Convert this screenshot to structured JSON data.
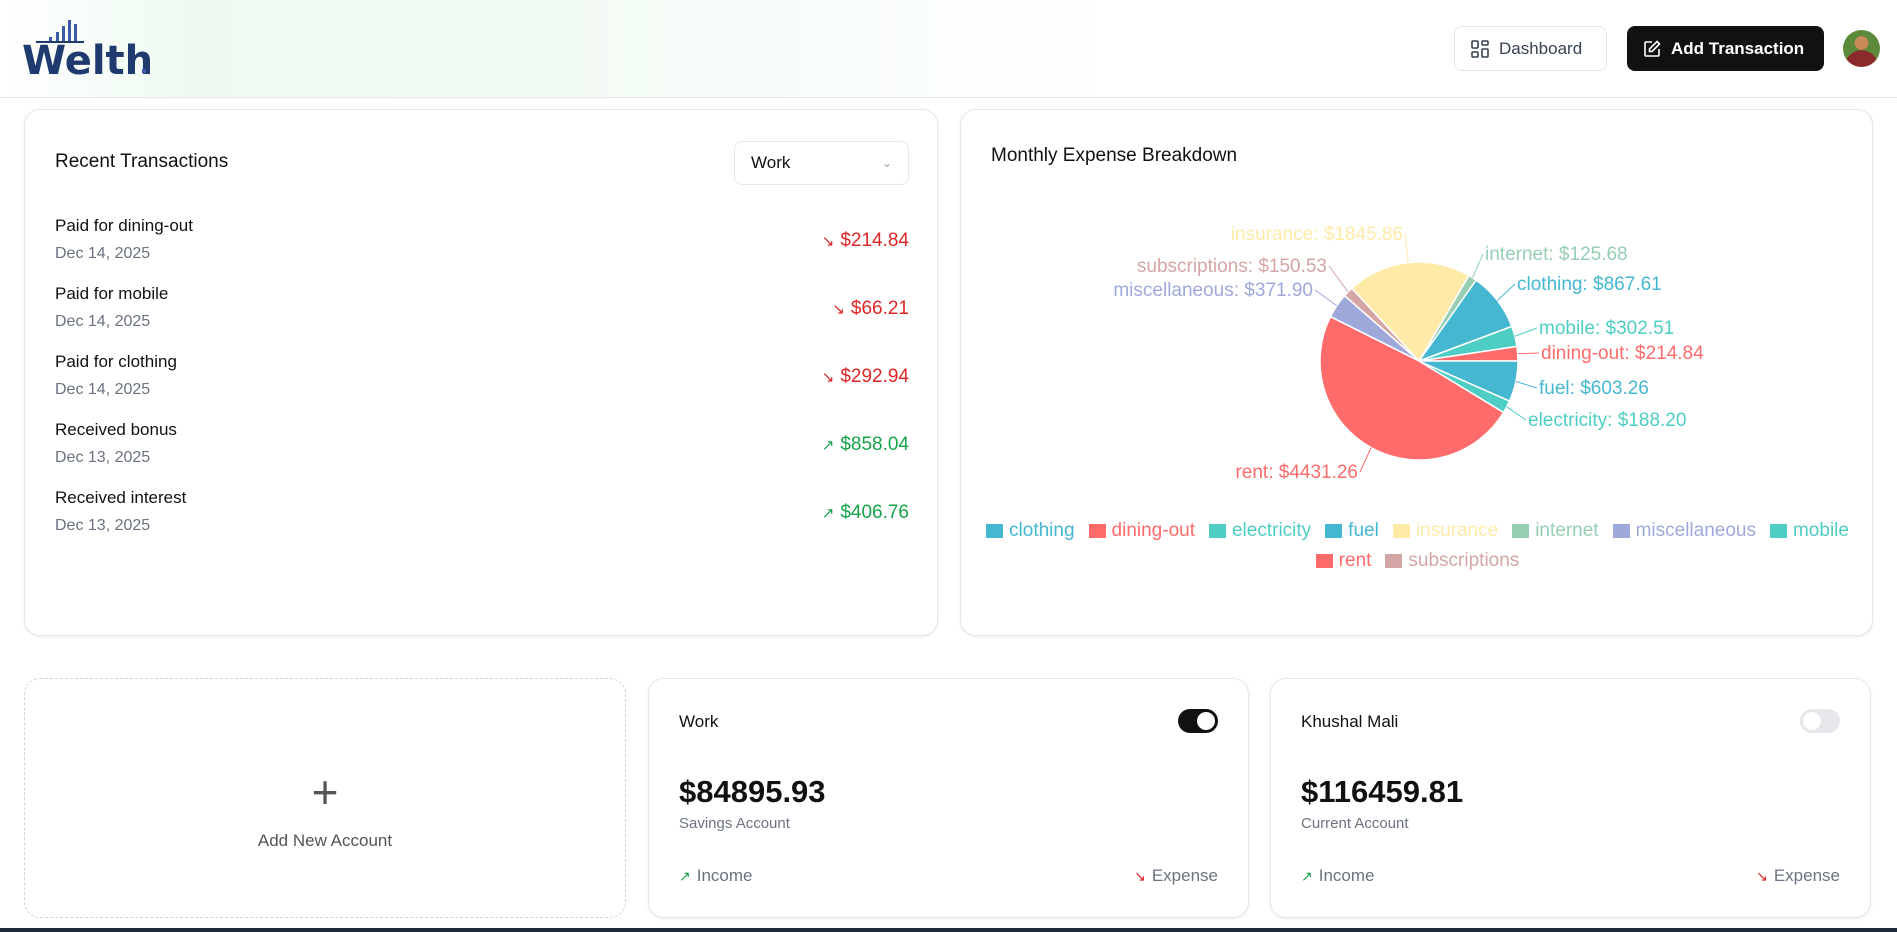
{
  "header": {
    "logo_text": "Welth",
    "dashboard_label": "Dashboard",
    "add_transaction_label": "Add Transaction"
  },
  "transactions": {
    "title": "Recent Transactions",
    "account_select": "Work",
    "items": [
      {
        "title": "Paid for dining-out",
        "date": "Dec 14, 2025",
        "amount": "$214.84",
        "type": "expense"
      },
      {
        "title": "Paid for mobile",
        "date": "Dec 14, 2025",
        "amount": "$66.21",
        "type": "expense"
      },
      {
        "title": "Paid for clothing",
        "date": "Dec 14, 2025",
        "amount": "$292.94",
        "type": "expense"
      },
      {
        "title": "Received bonus",
        "date": "Dec 13, 2025",
        "amount": "$858.04",
        "type": "income"
      },
      {
        "title": "Received interest",
        "date": "Dec 13, 2025",
        "amount": "$406.76",
        "type": "income"
      }
    ]
  },
  "chart_data": {
    "type": "pie",
    "title": "Monthly Expense Breakdown",
    "slices": [
      {
        "name": "dining-out",
        "value": 214.84,
        "label": "dining-out: $214.84",
        "color": "#ff6b6b"
      },
      {
        "name": "mobile",
        "value": 302.51,
        "label": "mobile: $302.51",
        "color": "#4ecdc4"
      },
      {
        "name": "clothing",
        "value": 867.61,
        "label": "clothing: $867.61",
        "color": "#45b7d1"
      },
      {
        "name": "internet",
        "value": 125.68,
        "label": "internet: $125.68",
        "color": "#96ceb4"
      },
      {
        "name": "insurance",
        "value": 1845.86,
        "label": "insurance: $1845.86",
        "color": "#ffeaa7"
      },
      {
        "name": "subscriptions",
        "value": 150.53,
        "label": "subscriptions: $150.53",
        "color": "#d4a5a5"
      },
      {
        "name": "miscellaneous",
        "value": 371.9,
        "label": "miscellaneous: $371.90",
        "color": "#9fa8da"
      },
      {
        "name": "rent",
        "value": 4431.26,
        "label": "rent: $4431.26",
        "color": "#ff6b6b"
      },
      {
        "name": "electricity",
        "value": 188.2,
        "label": "electricity: $188.20",
        "color": "#4ecdc4"
      },
      {
        "name": "fuel",
        "value": 603.26,
        "label": "fuel: $603.26",
        "color": "#45b7d1"
      }
    ],
    "legend": [
      {
        "name": "clothing",
        "color": "#45b7d1"
      },
      {
        "name": "dining-out",
        "color": "#ff6b6b"
      },
      {
        "name": "electricity",
        "color": "#4ecdc4"
      },
      {
        "name": "fuel",
        "color": "#45b7d1"
      },
      {
        "name": "insurance",
        "color": "#ffeaa7"
      },
      {
        "name": "internet",
        "color": "#96ceb4"
      },
      {
        "name": "miscellaneous",
        "color": "#9fa8da"
      },
      {
        "name": "mobile",
        "color": "#4ecdc4"
      },
      {
        "name": "rent",
        "color": "#ff6b6b"
      },
      {
        "name": "subscriptions",
        "color": "#d4a5a5"
      }
    ],
    "legend_position": "bottom"
  },
  "accounts": {
    "add_label": "Add New Account",
    "items": [
      {
        "name": "Work",
        "balance": "$84895.93",
        "type": "Savings Account",
        "default": true,
        "income": "Income",
        "expense": "Expense"
      },
      {
        "name": "Khushal Mali",
        "balance": "$116459.81",
        "type": "Current Account",
        "default": false,
        "income": "Income",
        "expense": "Expense"
      }
    ]
  }
}
